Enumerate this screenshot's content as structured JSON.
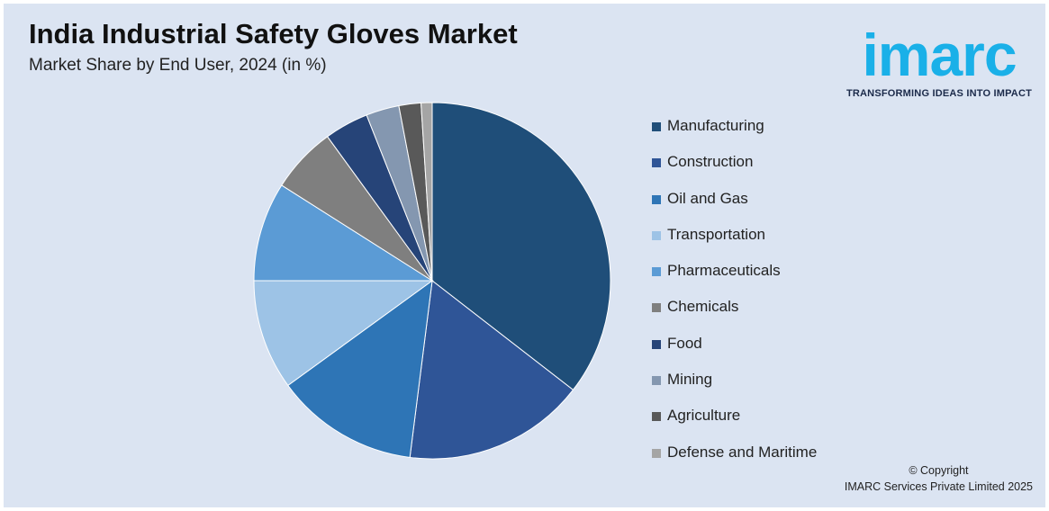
{
  "title": "India Industrial Safety Gloves Market",
  "subtitle": "Market Share by End User, 2024 (in %)",
  "logo": {
    "wordmark": "imarc",
    "tagline": "TRANSFORMING IDEAS INTO IMPACT"
  },
  "copyright": {
    "line1": "© Copyright",
    "line2": "IMARC Services Private Limited 2025"
  },
  "chart_data": {
    "type": "pie",
    "title": "India Industrial Safety Gloves Market",
    "subtitle": "Market Share by End User, 2024 (in %)",
    "start": "12 o'clock, clockwise",
    "legend_position": "right",
    "categories": [
      "Manufacturing",
      "Construction",
      "Oil and Gas",
      "Transportation",
      "Pharmaceuticals",
      "Chemicals",
      "Food",
      "Mining",
      "Agriculture",
      "Defense and Maritime"
    ],
    "values": [
      35.5,
      16.5,
      13.0,
      10.0,
      9.0,
      6.0,
      4.0,
      3.0,
      2.0,
      1.0
    ],
    "colors": [
      "#1f4e79",
      "#2f5597",
      "#2e75b6",
      "#9dc3e6",
      "#5b9bd5",
      "#7f7f7f",
      "#264478",
      "#8497b0",
      "#595959",
      "#a5a5a5"
    ]
  }
}
